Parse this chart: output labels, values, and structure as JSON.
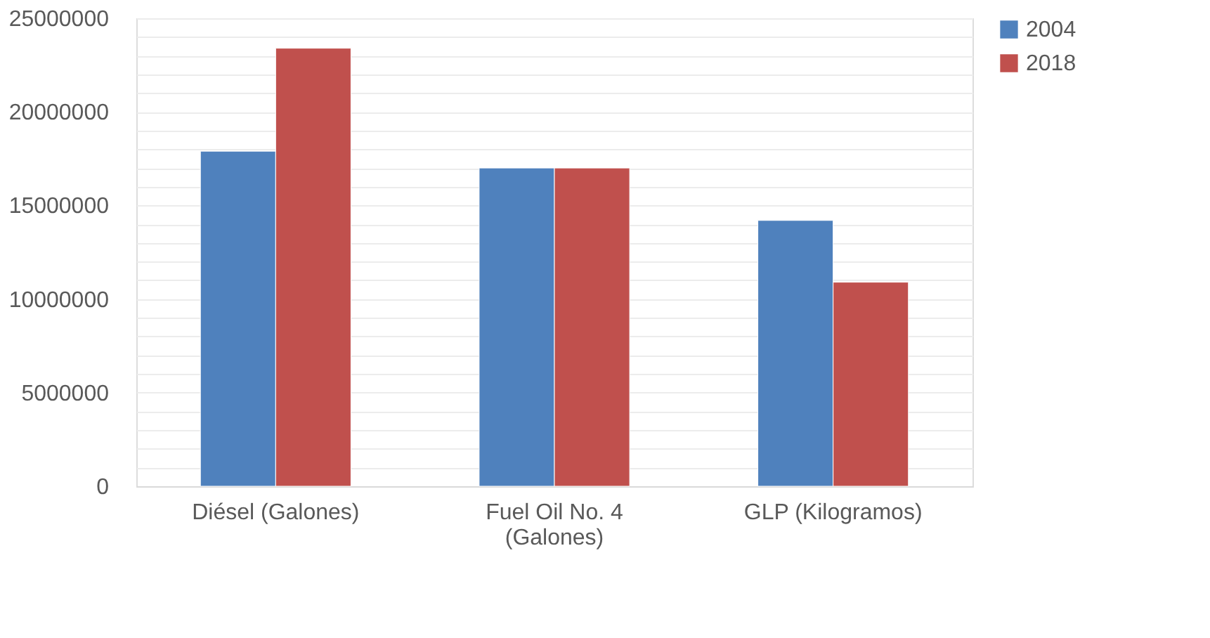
{
  "chart_data": {
    "type": "bar",
    "categories": [
      "Diésel (Galones)",
      "Fuel Oil No. 4\n(Galones)",
      "GLP (Kilogramos)"
    ],
    "series": [
      {
        "name": "2004",
        "color": "#4f81bd",
        "values": [
          17900000,
          17000000,
          14200000
        ]
      },
      {
        "name": "2018",
        "color": "#c0504d",
        "values": [
          23400000,
          17000000,
          10900000
        ]
      }
    ],
    "ylim": [
      0,
      25000000
    ],
    "yticks": [
      0,
      {
        "value": 1000000,
        "label": null
      },
      {
        "value": 2000000,
        "label": null
      },
      {
        "value": 3000000,
        "label": null
      },
      {
        "value": 4000000,
        "label": null
      },
      5000000,
      {
        "value": 6000000,
        "label": null
      },
      {
        "value": 7000000,
        "label": null
      },
      {
        "value": 8000000,
        "label": null
      },
      {
        "value": 9000000,
        "label": null
      },
      10000000,
      {
        "value": 11000000,
        "label": null
      },
      {
        "value": 12000000,
        "label": null
      },
      {
        "value": 13000000,
        "label": null
      },
      {
        "value": 14000000,
        "label": null
      },
      15000000,
      {
        "value": 16000000,
        "label": null
      },
      {
        "value": 17000000,
        "label": null
      },
      {
        "value": 18000000,
        "label": null
      },
      {
        "value": 19000000,
        "label": null
      },
      20000000,
      {
        "value": 21000000,
        "label": null
      },
      {
        "value": 22000000,
        "label": null
      },
      {
        "value": 23000000,
        "label": null
      },
      {
        "value": 24000000,
        "label": null
      },
      25000000
    ],
    "grid": "y",
    "legend": "right"
  }
}
